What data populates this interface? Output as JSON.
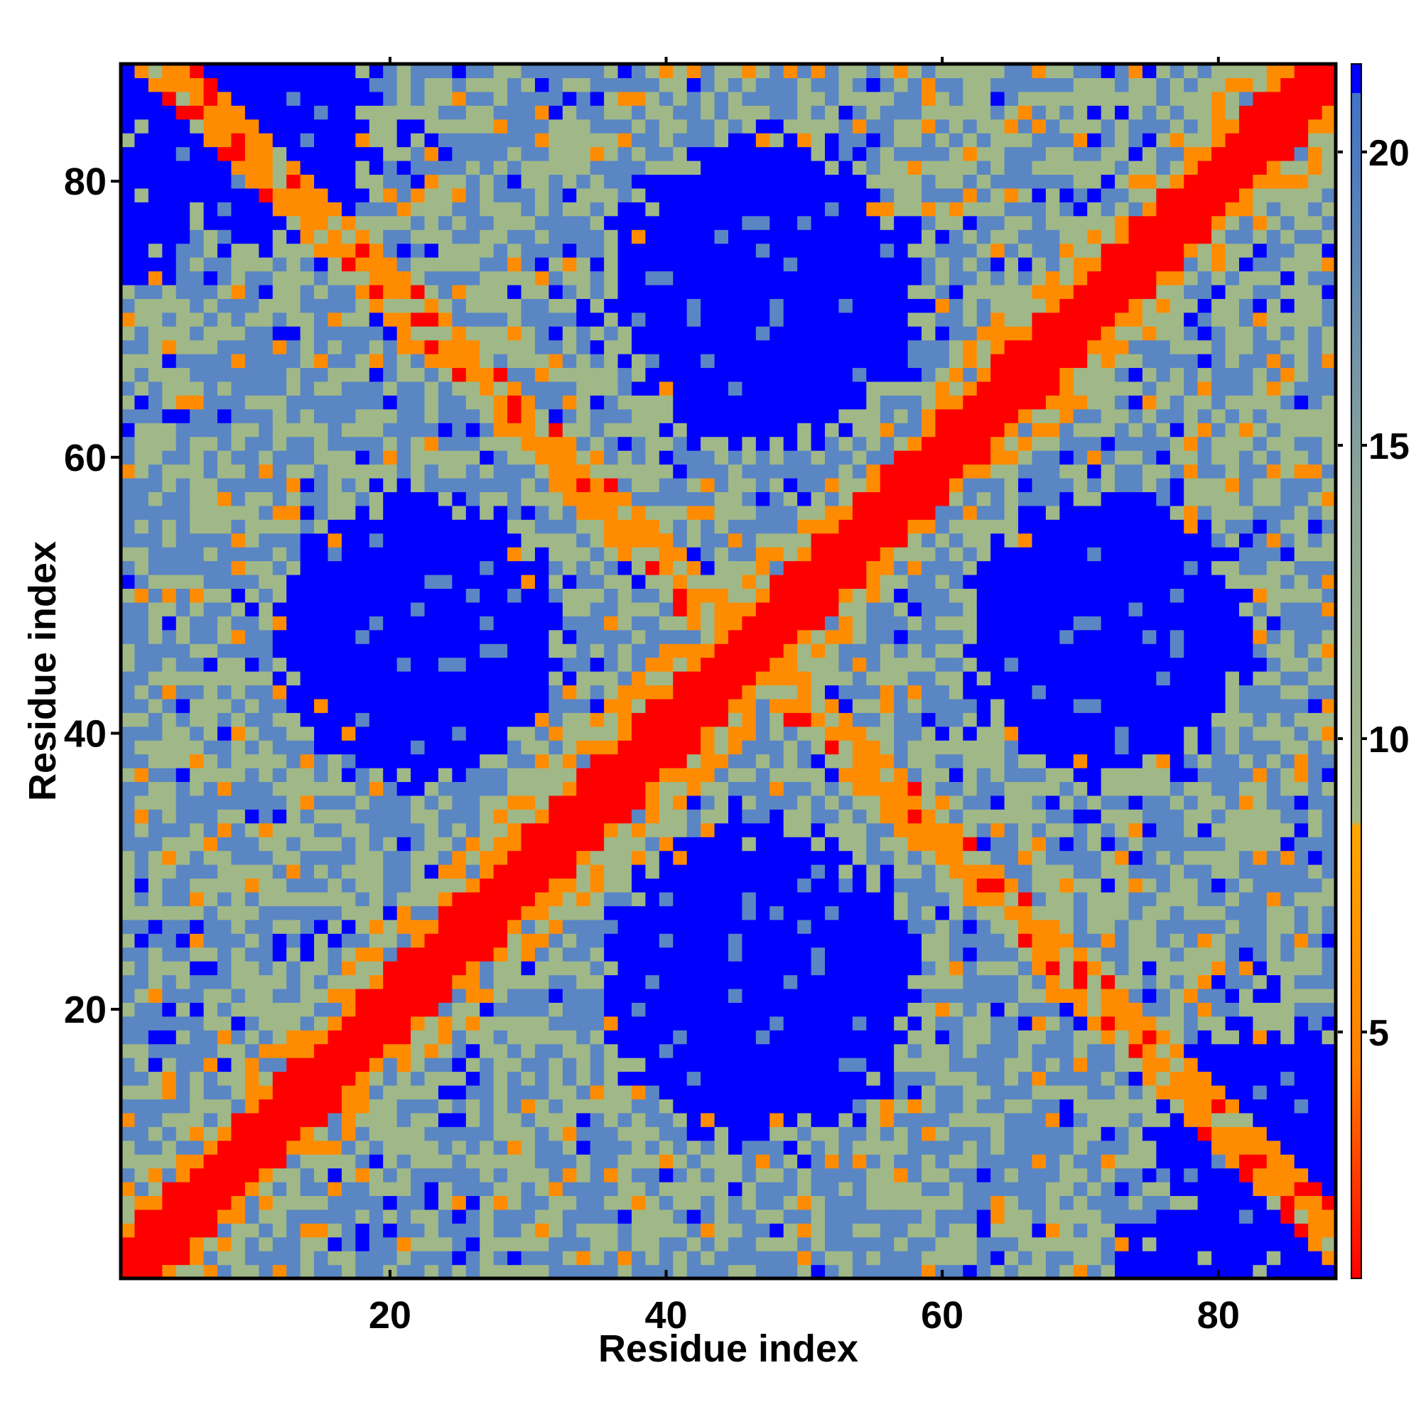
{
  "chart_data": {
    "type": "heatmap",
    "title": "",
    "xlabel": "Residue index",
    "ylabel": "Residue index",
    "n_residues": 88,
    "xlim": [
      1,
      88
    ],
    "ylim": [
      1,
      88
    ],
    "x_ticks": [
      20,
      40,
      60,
      80
    ],
    "x_tick_labels": [
      "20",
      "40",
      "60",
      "80"
    ],
    "y_ticks": [
      20,
      40,
      60,
      80
    ],
    "y_tick_labels": [
      "20",
      "40",
      "60",
      "80"
    ],
    "colorbar": {
      "range": [
        0.8,
        21.5
      ],
      "ticks": [
        5,
        10,
        15,
        20
      ],
      "tick_labels": [
        "5",
        "10",
        "15",
        "20"
      ],
      "stops": [
        {
          "value": 0.8,
          "color": "#ff0000"
        },
        {
          "value": 4.5,
          "color": "#ff8000"
        },
        {
          "value": 8.5,
          "color": "#ffa500"
        },
        {
          "value": 8.6,
          "color": "#a3b886"
        },
        {
          "value": 14.0,
          "color": "#8fa796"
        },
        {
          "value": 21.5,
          "color": "#3b6fcc"
        }
      ]
    },
    "colors": {
      "contact": "#ff0000",
      "near_contact": "#ff8c00",
      "medium": "#a0b887",
      "far": "#5b86c4",
      "no_contact": "#0000ff"
    },
    "value_description": "symmetric residue-residue distance map; main diagonal (i=j) is red; a strong anti-diagonal band (i+j≈92) is orange; four large blue no-contact regions; blue cutoff above ~21",
    "features": {
      "diagonal_band": {
        "offset_min": 0,
        "offset_max": 3
      },
      "anti_diagonal_band": {
        "sum": 92,
        "width": 2
      },
      "blue_regions": [
        {
          "center": [
            47,
            72
          ],
          "radius": 11
        },
        {
          "center": [
            47,
            22
          ],
          "radius": 11
        },
        {
          "center": [
            22,
            47
          ],
          "radius": 10
        },
        {
          "center": [
            72,
            47
          ],
          "radius": 10
        },
        {
          "center": [
            10,
            85
          ],
          "radius": 9
        },
        {
          "center": [
            85,
            10
          ],
          "radius": 9
        }
      ]
    }
  }
}
